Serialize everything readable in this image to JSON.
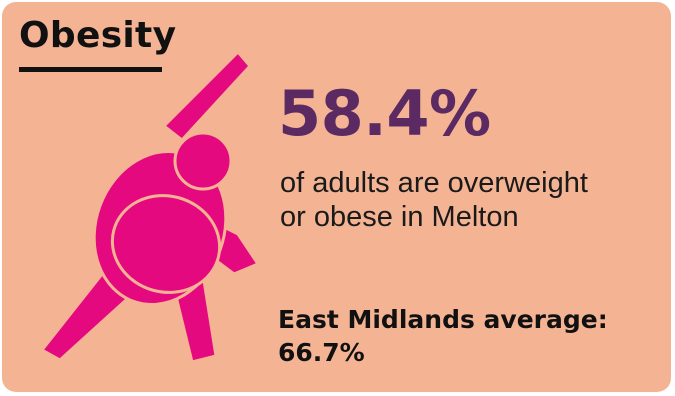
{
  "card": {
    "title": "Obesity",
    "background_color": "#f4b494",
    "figure_icon": "person-side-stretch-icon",
    "figure_color": "#e5097f"
  },
  "stat": {
    "value": "58.4%",
    "value_color": "#5c2a63",
    "description_line1": "of adults are overweight",
    "description_line2": "or obese in Melton"
  },
  "comparison": {
    "label": "East Midlands average:",
    "value": "66.7%"
  }
}
